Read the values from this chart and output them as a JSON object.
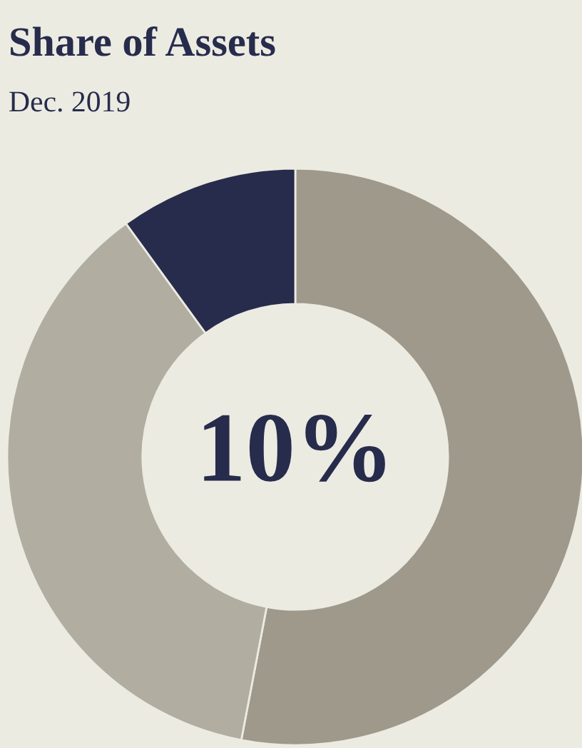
{
  "chart_data": {
    "type": "donut",
    "title": "Share of Assets",
    "subtitle": "Dec. 2019",
    "categories": [
      null,
      null,
      null
    ],
    "values": [
      53,
      37,
      10
    ],
    "colors": [
      "#9e998b",
      "#b1ada0",
      "#272c4c"
    ],
    "annotations": [
      "10%"
    ]
  }
}
